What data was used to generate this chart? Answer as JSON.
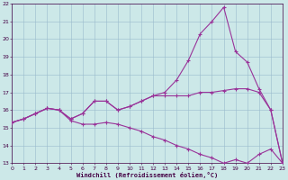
{
  "xlabel": "Windchill (Refroidissement éolien,°C)",
  "x_values": [
    0,
    1,
    2,
    3,
    4,
    5,
    6,
    7,
    8,
    9,
    10,
    11,
    12,
    13,
    14,
    15,
    16,
    17,
    18,
    19,
    20,
    21,
    22,
    23
  ],
  "line1_y": [
    15.3,
    15.5,
    15.8,
    16.1,
    16.0,
    15.5,
    15.8,
    16.5,
    16.5,
    16.0,
    16.2,
    16.5,
    16.8,
    17.0,
    17.7,
    18.8,
    20.3,
    21.0,
    21.8,
    19.3,
    18.7,
    17.2,
    16.0,
    13.0
  ],
  "line2_y": [
    15.3,
    15.5,
    15.8,
    16.1,
    16.0,
    15.5,
    15.8,
    16.5,
    16.5,
    16.0,
    16.2,
    16.5,
    16.8,
    16.8,
    16.8,
    16.8,
    17.0,
    17.0,
    17.1,
    17.2,
    17.2,
    17.0,
    16.0,
    13.0
  ],
  "line3_y": [
    15.3,
    15.5,
    15.8,
    16.1,
    16.0,
    15.4,
    15.2,
    15.2,
    15.3,
    15.2,
    15.0,
    14.8,
    14.5,
    14.3,
    14.0,
    13.8,
    13.5,
    13.3,
    13.0,
    13.2,
    13.0,
    13.5,
    13.8,
    13.0
  ],
  "line_color": "#993399",
  "bg_color": "#cce8e8",
  "grid_color": "#99bbcc",
  "ylim_min": 13,
  "ylim_max": 22,
  "xlim_min": 0,
  "xlim_max": 23,
  "yticks": [
    13,
    14,
    15,
    16,
    17,
    18,
    19,
    20,
    21,
    22
  ],
  "xticks": [
    0,
    1,
    2,
    3,
    4,
    5,
    6,
    7,
    8,
    9,
    10,
    11,
    12,
    13,
    14,
    15,
    16,
    17,
    18,
    19,
    20,
    21,
    22,
    23
  ],
  "tick_fontsize": 4.5,
  "label_fontsize": 5.0,
  "linewidth": 0.8,
  "markersize": 2.5,
  "markeredgewidth": 0.8
}
